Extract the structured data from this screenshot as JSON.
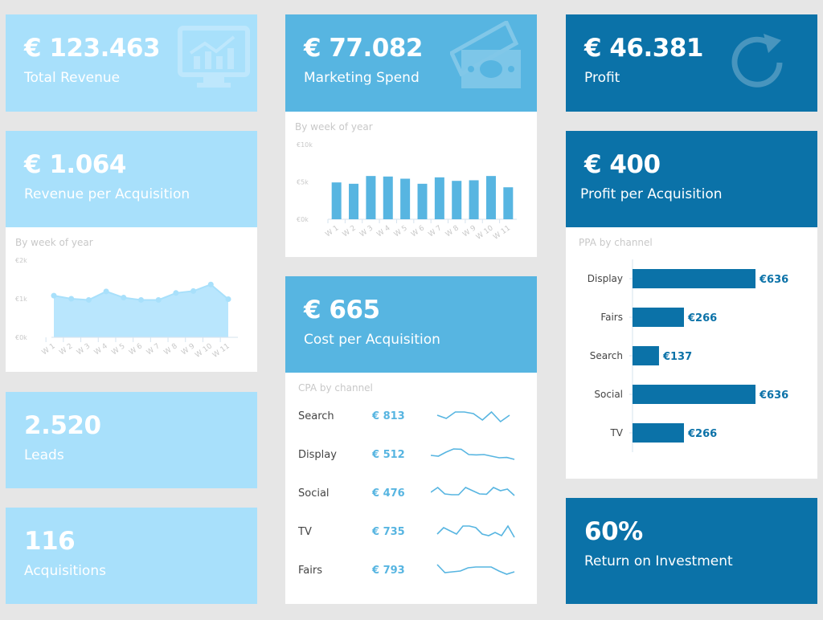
{
  "colors": {
    "light": "#a8e0fb",
    "mid": "#57b5e1",
    "dark": "#0b72a8",
    "background": "#e6e6e6"
  },
  "total_revenue": {
    "value": "€ 123.463",
    "label": "Total Revenue",
    "icon": "monitor-chart-icon"
  },
  "marketing_spend": {
    "value": "€ 77.082",
    "label": "Marketing Spend",
    "icon": "money-icon"
  },
  "profit": {
    "value": "€ 46.381",
    "label": "Profit",
    "icon": "refresh-icon"
  },
  "revenue_per_acquisition": {
    "value": "€ 1.064",
    "label": "Revenue per Acquisition"
  },
  "profit_per_acquisition": {
    "value": "€ 400",
    "label": "Profit per Acquisition"
  },
  "cost_per_acquisition": {
    "value": "€ 665",
    "label": "Cost per Acquisition"
  },
  "leads": {
    "value": "2.520",
    "label": "Leads"
  },
  "acquisitions": {
    "value": "116",
    "label": "Acquisitions"
  },
  "roi": {
    "value": "60%",
    "label": "Return on Investment"
  },
  "cpa_by_channel": {
    "subtitle": "CPA by channel",
    "rows": [
      {
        "name": "Search",
        "value": "€ 813",
        "spark": [
          5,
          3,
          7,
          7,
          6,
          2,
          7,
          1,
          5
        ]
      },
      {
        "name": "Display",
        "value": "€ 512",
        "spark": [
          4,
          3.5,
          6,
          8,
          7.8,
          4.5,
          4.3,
          4.5,
          3.5,
          2.5,
          2.7,
          1.5
        ]
      },
      {
        "name": "Social",
        "value": "€ 476",
        "spark": [
          5,
          8,
          4,
          3.5,
          3.5,
          8,
          6,
          4,
          3.8,
          8,
          6,
          7,
          3
        ]
      },
      {
        "name": "TV",
        "value": "€ 735",
        "spark": [
          3,
          7,
          5,
          3,
          8,
          8,
          7,
          3,
          2,
          4,
          2,
          8,
          1
        ]
      },
      {
        "name": "Fairs",
        "value": "€ 793",
        "spark": [
          8,
          3,
          3.5,
          4,
          6,
          6.5,
          6.5,
          6.5,
          4,
          2,
          3.5
        ]
      }
    ]
  },
  "chart_data": [
    {
      "type": "area",
      "title": "By week of year",
      "categories": [
        "W 1",
        "W 2",
        "W 3",
        "W 4",
        "W 5",
        "W 6",
        "W 7",
        "W 8",
        "W 9",
        "W 10",
        "W 11"
      ],
      "values": [
        1080,
        1000,
        970,
        1190,
        1030,
        970,
        970,
        1150,
        1200,
        1370,
        990
      ],
      "ytick_labels": [
        "€0k",
        "€1k",
        "€2k"
      ],
      "ylim": [
        0,
        2000
      ]
    },
    {
      "type": "bar",
      "title": "By week of year",
      "categories": [
        "W 1",
        "W 2",
        "W 3",
        "W 4",
        "W 5",
        "W 6",
        "W 7",
        "W 8",
        "W 9",
        "W 10",
        "W 11"
      ],
      "values": [
        4930,
        4750,
        5790,
        5720,
        5430,
        4750,
        5610,
        5140,
        5220,
        5790,
        4280
      ],
      "ytick_labels": [
        "€0k",
        "€5k",
        "€10k"
      ],
      "ylim": [
        0,
        10000
      ]
    },
    {
      "type": "bar",
      "orientation": "horizontal",
      "title": "PPA by channel",
      "categories": [
        "Display",
        "Fairs",
        "Search",
        "Social",
        "TV"
      ],
      "values": [
        636,
        266,
        137,
        636,
        266
      ],
      "labels": [
        "€636",
        "€266",
        "€137",
        "€636",
        "€266"
      ]
    }
  ]
}
